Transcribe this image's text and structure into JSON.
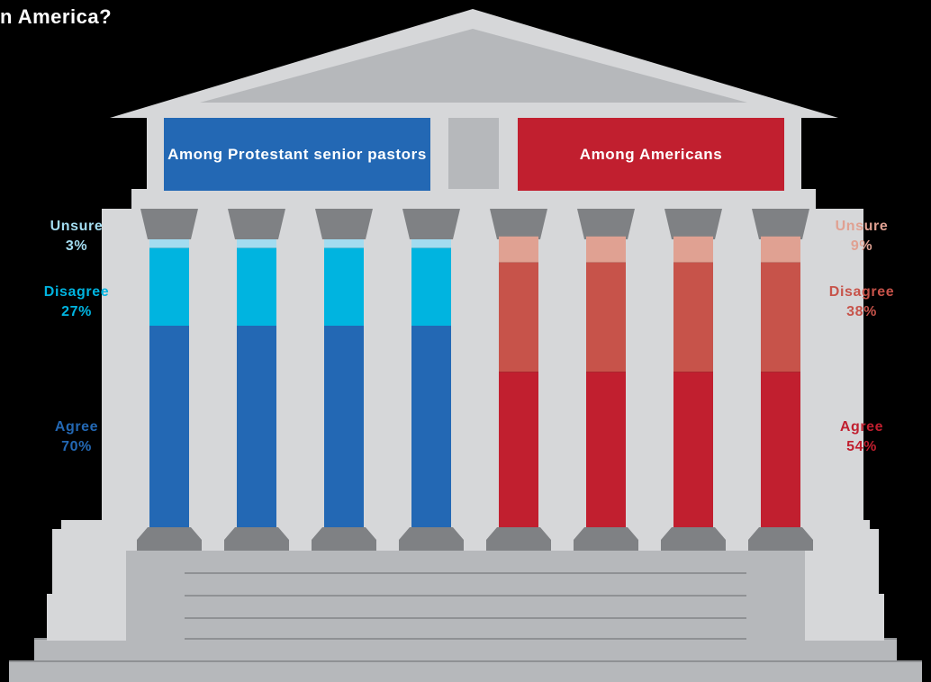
{
  "title": "n America?",
  "colors": {
    "background": "#000000",
    "pastors_agree": "#2368b4",
    "pastors_disagree": "#00b4e0",
    "pastors_unsure": "#a3dcf0",
    "americans_agree": "#c11f2f",
    "americans_disagree": "#c7534a",
    "americans_unsure": "#e0a192",
    "stone_light": "#d6d7d9",
    "stone_mid": "#b6b8bb",
    "stone_dark": "#7f8184"
  },
  "chart_data": {
    "type": "bar",
    "orientation": "vertical-stacked-100",
    "groups": [
      {
        "name": "Among Protestant senior pastors",
        "banner": "Among Protestant senior pastors",
        "segments": [
          {
            "label": "Agree",
            "value": 70,
            "display": "70%",
            "color": "#2368b4"
          },
          {
            "label": "Disagree",
            "value": 27,
            "display": "27%",
            "color": "#00b4e0"
          },
          {
            "label": "Unsure",
            "value": 3,
            "display": "3%",
            "color": "#a3dcf0"
          }
        ]
      },
      {
        "name": "Among Americans",
        "banner": "Among Americans",
        "segments": [
          {
            "label": "Agree",
            "value": 54,
            "display": "54%",
            "color": "#c11f2f"
          },
          {
            "label": "Disagree",
            "value": 38,
            "display": "38%",
            "color": "#c7534a"
          },
          {
            "label": "Unsure",
            "value": 9,
            "display": "9%",
            "color": "#e0a192"
          }
        ]
      }
    ],
    "ylim": [
      0,
      100
    ]
  }
}
